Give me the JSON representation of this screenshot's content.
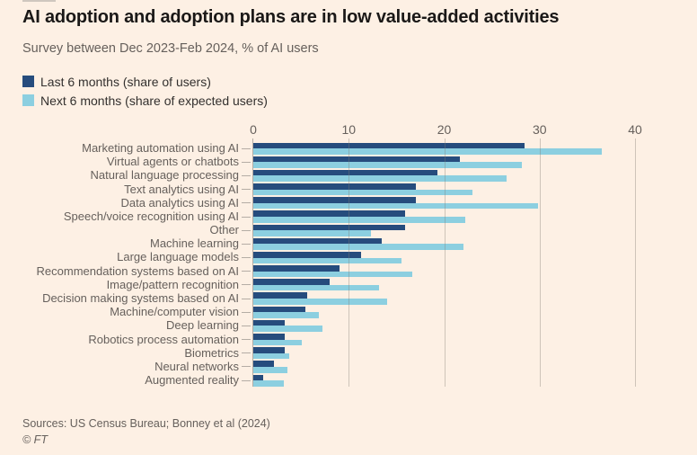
{
  "colors": {
    "background": "#FDF0E4",
    "dark_series": "#264C7D",
    "light_series": "#8CCFE0",
    "title_text": "#1A1817",
    "muted_text": "#66605C",
    "legend_text": "#33302E",
    "gridline": "rgba(130,124,116,0.38)",
    "axis_line": "#b5ada5"
  },
  "header": {
    "title": "AI adoption and adoption plans are in low value-added activities",
    "subtitle": "Survey between Dec 2023-Feb 2024, % of AI users"
  },
  "legend": {
    "items": [
      {
        "label": "Last 6 months (share of users)",
        "color": "#264C7D"
      },
      {
        "label": "Next 6 months (share of expected users)",
        "color": "#8CCFE0"
      }
    ]
  },
  "chart_data": {
    "type": "bar",
    "orientation": "horizontal",
    "title": "AI adoption and adoption plans are in low value-added activities",
    "subtitle": "Survey between Dec 2023-Feb 2024, % of AI users",
    "xlabel": "% of AI users",
    "ylabel": "",
    "xlim": [
      0,
      40
    ],
    "x_ticks": [
      0,
      10,
      20,
      30,
      40
    ],
    "grid": true,
    "legend_position": "top-left",
    "categories": [
      "Marketing automation using AI",
      "Virtual agents or chatbots",
      "Natural language processing",
      "Text analytics using AI",
      "Data analytics using AI",
      "Speech/voice recognition using AI",
      "Other",
      "Machine learning",
      "Large language models",
      "Recommendation systems based on AI",
      "Image/pattern recognition",
      "Decision making systems based on AI",
      "Machine/computer vision",
      "Deep learning",
      "Robotics process automation",
      "Biometrics",
      "Neural networks",
      "Augmented reality"
    ],
    "series": [
      {
        "name": "Last 6 months (share of users)",
        "color": "#264C7D",
        "values": [
          28.4,
          21.6,
          19.3,
          17,
          17,
          15.9,
          15.9,
          13.5,
          11.3,
          9,
          8,
          5.6,
          5.5,
          3.3,
          3.3,
          3.3,
          2.2,
          1
        ]
      },
      {
        "name": "Next 6 months (share of expected users)",
        "color": "#8CCFE0",
        "values": [
          36.5,
          28.1,
          26.5,
          23,
          29.8,
          22.2,
          12.3,
          22,
          15.5,
          16.7,
          13.2,
          14,
          6.9,
          7.2,
          5.1,
          3.8,
          3.6,
          3.2
        ]
      }
    ]
  },
  "footer": {
    "sources": "Sources: US Census Bureau; Bonney et al (2024)",
    "copyright": "© FT"
  }
}
